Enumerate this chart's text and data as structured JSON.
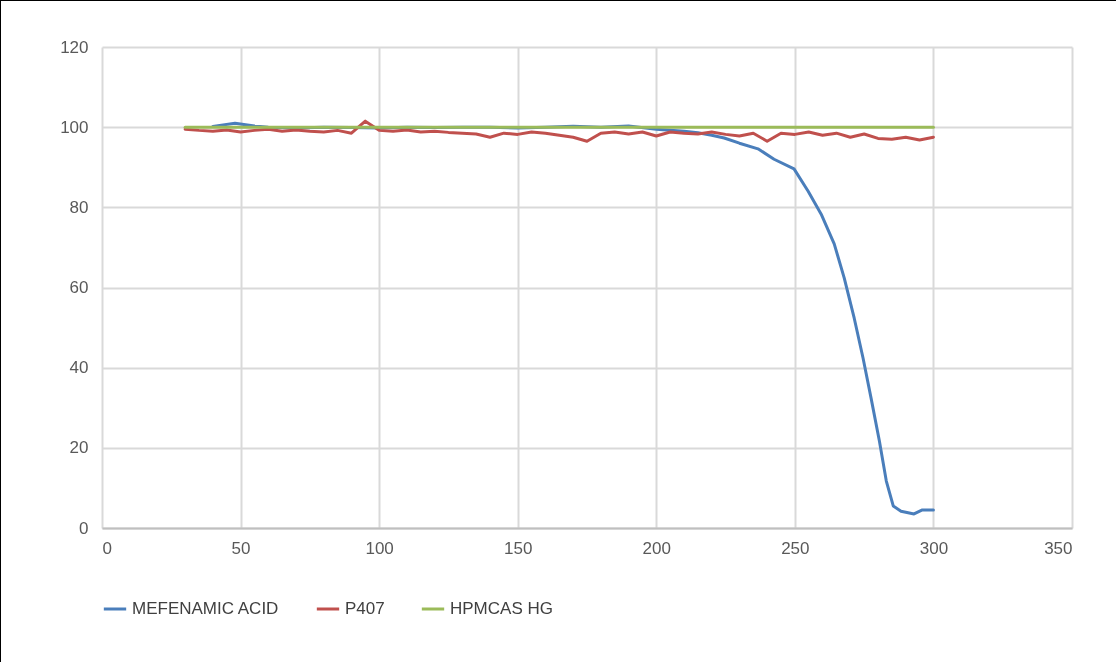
{
  "chart_data": {
    "type": "line",
    "xlim": [
      0,
      350
    ],
    "xticks": [
      0,
      50,
      100,
      150,
      200,
      250,
      300,
      350
    ],
    "ylim": [
      0,
      120
    ],
    "yticks": [
      0,
      20,
      40,
      60,
      80,
      100,
      120
    ],
    "grid": true,
    "legend": "bottom",
    "marker": "none",
    "line_style": "solid",
    "series": [
      {
        "name": "MEFENAMIC ACID",
        "color": "#4a7ebb",
        "x": [
          40,
          48,
          55,
          60,
          70,
          80,
          90,
          100,
          110,
          120,
          130,
          140,
          150,
          160,
          170,
          180,
          190,
          200,
          210,
          215,
          220,
          224.5,
          230,
          236.7,
          242.5,
          249.7,
          254.8,
          259.5,
          264.2,
          267.8,
          271.4,
          274.6,
          277.5,
          280.5,
          283,
          285.5,
          288.3,
          293,
          296,
          300
        ],
        "values": [
          100.2,
          101,
          100.3,
          100,
          99.8,
          100,
          99.9,
          99.8,
          100,
          99.9,
          100,
          100,
          99.8,
          100,
          100.2,
          100,
          100.3,
          99.5,
          99,
          98.6,
          98,
          97.3,
          96,
          94.6,
          92,
          89.6,
          84,
          78.3,
          70.9,
          62.4,
          52.4,
          42.4,
          32.4,
          21.7,
          11.7,
          5.5,
          4.2,
          3.5,
          4.5,
          4.5
        ]
      },
      {
        "name": "P407",
        "color": "#c0504d",
        "x": [
          30,
          35,
          40,
          45,
          50,
          55,
          60,
          65,
          70,
          75,
          80,
          85,
          90,
          95,
          100,
          105,
          110,
          115,
          120,
          125,
          130,
          135,
          140,
          145,
          150,
          155,
          160,
          165,
          170,
          175,
          180,
          185,
          190,
          195,
          200,
          205,
          210,
          215,
          220,
          225,
          230,
          235,
          240,
          245,
          250,
          255,
          260,
          265,
          270,
          275,
          280,
          285,
          290,
          295,
          300
        ],
        "values": [
          99.5,
          99.2,
          99,
          99.3,
          98.8,
          99.2,
          99.5,
          99,
          99.3,
          99,
          98.8,
          99.2,
          98.5,
          101.5,
          99.2,
          99,
          99.3,
          98.8,
          99,
          98.7,
          98.5,
          98.3,
          97.5,
          98.5,
          98.2,
          98.8,
          98.5,
          98,
          97.5,
          96.5,
          98.5,
          98.8,
          98.3,
          98.8,
          97.8,
          98.8,
          98.5,
          98.3,
          98.8,
          98.2,
          97.8,
          98.5,
          96.5,
          98.5,
          98.2,
          98.8,
          98,
          98.5,
          97.5,
          98.3,
          97.2,
          97,
          97.5,
          96.8,
          97.5
        ]
      },
      {
        "name": "HPMCAS HG",
        "color": "#9bbb59",
        "x": [
          30,
          100,
          200,
          300
        ],
        "values": [
          100,
          100,
          100,
          100
        ]
      }
    ]
  }
}
